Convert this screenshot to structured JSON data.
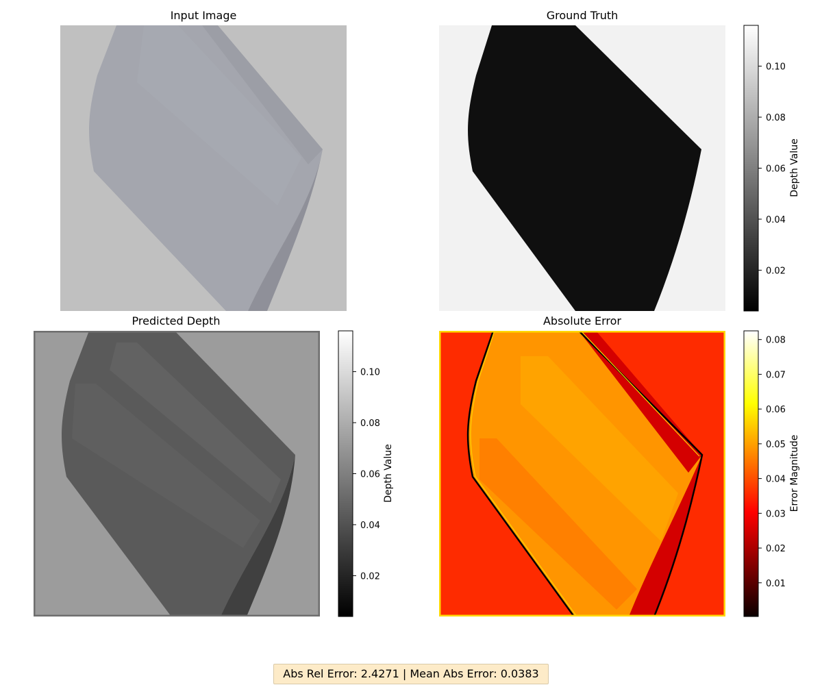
{
  "chart_data": [
    {
      "type": "image",
      "title": "Input Image",
      "image": {
        "background_color": "#c0c0c0",
        "object_colors": [
          "#a4a6ae",
          "#a9abb3",
          "#9c9ea6",
          "#8f9099"
        ]
      }
    },
    {
      "type": "heatmap",
      "title": "Ground Truth",
      "colormap": "gray",
      "background_color": "#f2f2f2",
      "object_color": "#0f0f0f",
      "colorbar": {
        "label": "Depth Value",
        "range": [
          0.004,
          0.116
        ],
        "ticks": [
          0.02,
          0.04,
          0.06,
          0.08,
          0.1
        ],
        "tick_labels": [
          "0.02",
          "0.04",
          "0.06",
          "0.08",
          "0.10"
        ]
      }
    },
    {
      "type": "heatmap",
      "title": "Predicted Depth",
      "colormap": "gray",
      "background_color": "#9c9c9c",
      "object_colors": [
        "#5a5a5a",
        "#616161",
        "#686868",
        "#404040"
      ],
      "colorbar": {
        "label": "Depth Value",
        "range": [
          0.004,
          0.116
        ],
        "ticks": [
          0.02,
          0.04,
          0.06,
          0.08,
          0.1
        ],
        "tick_labels": [
          "0.02",
          "0.04",
          "0.06",
          "0.08",
          "0.10"
        ]
      }
    },
    {
      "type": "heatmap",
      "title": "Absolute Error",
      "colormap": "hot",
      "background_color": "#fe2b00",
      "object_colors": [
        "#ff9500",
        "#ffa300",
        "#ff7b00",
        "#d40000"
      ],
      "colorbar": {
        "label": "Error Magnitude",
        "range": [
          0.0003,
          0.0825
        ],
        "ticks": [
          0.01,
          0.02,
          0.03,
          0.04,
          0.05,
          0.06,
          0.07,
          0.08
        ],
        "tick_labels": [
          "0.01",
          "0.02",
          "0.03",
          "0.04",
          "0.05",
          "0.06",
          "0.07",
          "0.08"
        ]
      }
    }
  ],
  "stats": {
    "text": "Abs Rel Error: 2.4271 | Mean Abs Error: 0.0383",
    "abs_rel_error": 2.4271,
    "mean_abs_error": 0.0383
  }
}
